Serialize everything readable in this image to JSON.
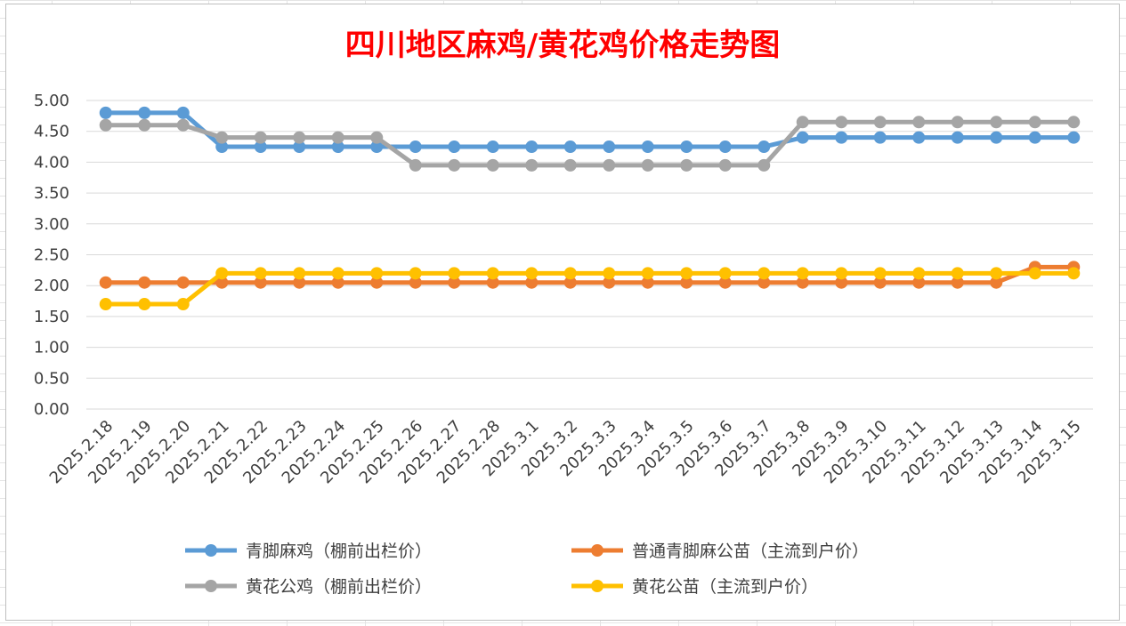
{
  "chart_data": {
    "type": "line",
    "title": "四川地区麻鸡/黄花鸡价格走势图",
    "xlabel": "",
    "ylabel": "",
    "ylim": [
      0,
      5
    ],
    "y_ticks": [
      "0.00",
      "0.50",
      "1.00",
      "1.50",
      "2.00",
      "2.50",
      "3.00",
      "3.50",
      "4.00",
      "4.50",
      "5.00"
    ],
    "grid": "horizontal",
    "legend_position": "bottom",
    "categories": [
      "2025.2.18",
      "2025.2.19",
      "2025.2.20",
      "2025.2.21",
      "2025.2.22",
      "2025.2.23",
      "2025.2.24",
      "2025.2.25",
      "2025.2.26",
      "2025.2.27",
      "2025.2.28",
      "2025.3.1",
      "2025.3.2",
      "2025.3.3",
      "2025.3.4",
      "2025.3.5",
      "2025.3.6",
      "2025.3.7",
      "2025.3.8",
      "2025.3.9",
      "2025.3.10",
      "2025.3.11",
      "2025.3.12",
      "2025.3.13",
      "2025.3.14",
      "2025.3.15"
    ],
    "series": [
      {
        "name": "青脚麻鸡（棚前出栏价）",
        "color": "#5b9bd5",
        "values": [
          4.8,
          4.8,
          4.8,
          4.25,
          4.25,
          4.25,
          4.25,
          4.25,
          4.25,
          4.25,
          4.25,
          4.25,
          4.25,
          4.25,
          4.25,
          4.25,
          4.25,
          4.25,
          4.4,
          4.4,
          4.4,
          4.4,
          4.4,
          4.4,
          4.4,
          4.4
        ]
      },
      {
        "name": "普通青脚麻公苗（主流到户价）",
        "color": "#ed7d31",
        "values": [
          2.05,
          2.05,
          2.05,
          2.05,
          2.05,
          2.05,
          2.05,
          2.05,
          2.05,
          2.05,
          2.05,
          2.05,
          2.05,
          2.05,
          2.05,
          2.05,
          2.05,
          2.05,
          2.05,
          2.05,
          2.05,
          2.05,
          2.05,
          2.05,
          2.3,
          2.3
        ]
      },
      {
        "name": "黄花公鸡（棚前出栏价）",
        "color": "#a5a5a5",
        "values": [
          4.6,
          4.6,
          4.6,
          4.4,
          4.4,
          4.4,
          4.4,
          4.4,
          3.95,
          3.95,
          3.95,
          3.95,
          3.95,
          3.95,
          3.95,
          3.95,
          3.95,
          3.95,
          4.65,
          4.65,
          4.65,
          4.65,
          4.65,
          4.65,
          4.65,
          4.65
        ]
      },
      {
        "name": "黄花公苗（主流到户价）",
        "color": "#ffc000",
        "values": [
          1.7,
          1.7,
          1.7,
          2.2,
          2.2,
          2.2,
          2.2,
          2.2,
          2.2,
          2.2,
          2.2,
          2.2,
          2.2,
          2.2,
          2.2,
          2.2,
          2.2,
          2.2,
          2.2,
          2.2,
          2.2,
          2.2,
          2.2,
          2.2,
          2.2,
          2.2
        ]
      }
    ]
  }
}
